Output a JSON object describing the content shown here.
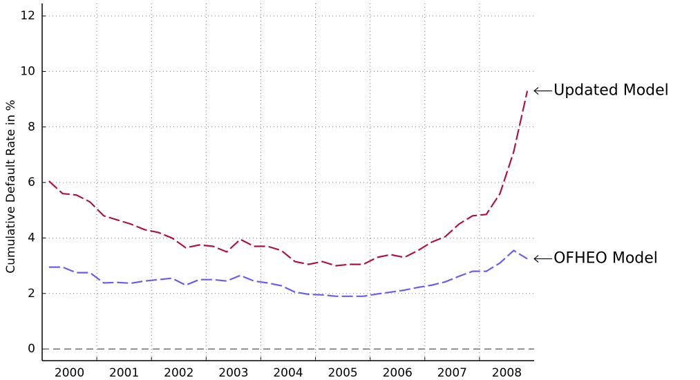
{
  "chart_data": {
    "type": "line",
    "y_label": "Cumulative Default Rate in %",
    "x": [
      2000.125,
      2000.375,
      2000.625,
      2000.875,
      2001.125,
      2001.375,
      2001.625,
      2001.875,
      2002.125,
      2002.375,
      2002.625,
      2002.875,
      2003.125,
      2003.375,
      2003.625,
      2003.875,
      2004.125,
      2004.375,
      2004.625,
      2004.875,
      2005.125,
      2005.375,
      2005.625,
      2005.875,
      2006.125,
      2006.375,
      2006.625,
      2006.875,
      2007.125,
      2007.375,
      2007.625,
      2007.875,
      2008.125,
      2008.375,
      2008.625,
      2008.875
    ],
    "series": [
      {
        "name": "Updated Model",
        "color": "#b0104a",
        "values": [
          6.05,
          5.6,
          5.55,
          5.3,
          4.8,
          4.65,
          4.5,
          4.3,
          4.2,
          4.0,
          3.65,
          3.75,
          3.7,
          3.5,
          3.95,
          3.7,
          3.7,
          3.55,
          3.15,
          3.05,
          3.15,
          3.0,
          3.05,
          3.05,
          3.3,
          3.4,
          3.3,
          3.55,
          3.85,
          4.05,
          4.5,
          4.8,
          4.85,
          5.6,
          7.1,
          9.3
        ]
      },
      {
        "name": "OFHEO Model",
        "color": "#6a5cf0",
        "values": [
          2.95,
          2.95,
          2.75,
          2.75,
          2.38,
          2.4,
          2.37,
          2.45,
          2.5,
          2.55,
          2.3,
          2.5,
          2.5,
          2.45,
          2.65,
          2.45,
          2.38,
          2.28,
          2.05,
          1.97,
          1.95,
          1.9,
          1.9,
          1.9,
          1.98,
          2.05,
          2.12,
          2.22,
          2.3,
          2.42,
          2.62,
          2.8,
          2.8,
          3.1,
          3.55,
          3.25
        ]
      }
    ],
    "xlim": [
      2000,
      2009
    ],
    "xticks": [
      2000,
      2001,
      2002,
      2003,
      2004,
      2005,
      2006,
      2007,
      2008
    ],
    "ylim": [
      -0.42,
      12.45
    ],
    "yticks": [
      0,
      2,
      4,
      6,
      8,
      10,
      12
    ],
    "grid": true
  }
}
